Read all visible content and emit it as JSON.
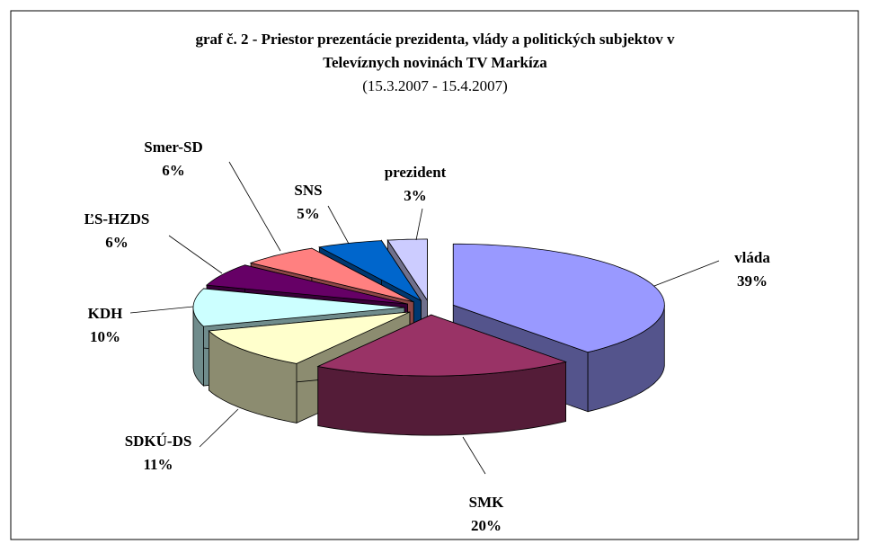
{
  "chart_data": {
    "type": "pie3d",
    "title": [
      "graf č. 2 - Priestor prezentácie prezidenta, vlády a politických subjektov v",
      "Televíznych novinách TV Markíza"
    ],
    "subtitle": "(15.3.2007 - 15.4.2007)",
    "categories": [
      "vláda",
      "SMK",
      "SDKÚ-DS",
      "KDH",
      "ĽS-HZDS",
      "Smer-SD",
      "SNS",
      "prezident"
    ],
    "values": [
      39,
      20,
      11,
      10,
      6,
      6,
      5,
      3
    ],
    "value_labels": [
      "39%",
      "20%",
      "11%",
      "10%",
      "6%",
      "6%",
      "5%",
      "3%"
    ],
    "colors": [
      "#9999ff",
      "#993366",
      "#ffffcc",
      "#ccffff",
      "#660066",
      "#ff8080",
      "#0066cc",
      "#ccccff"
    ]
  }
}
